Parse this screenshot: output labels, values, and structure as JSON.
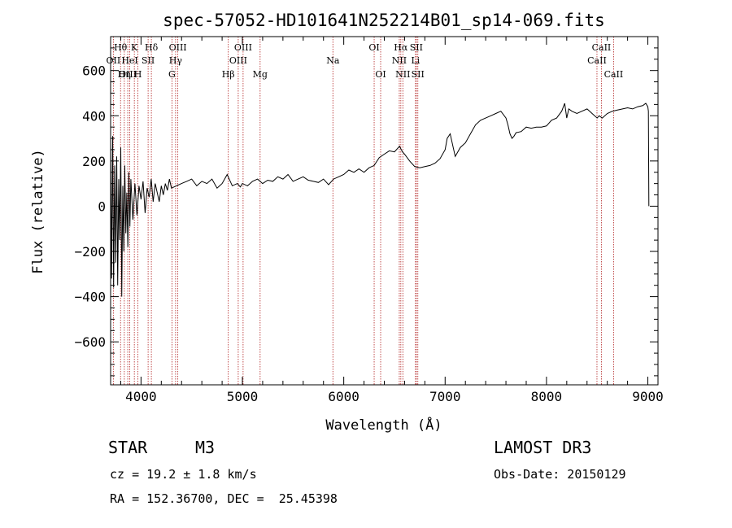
{
  "chart_data": {
    "type": "line",
    "title": "spec-57052-HD101641N252214B01_sp14-069.fits",
    "xlabel": "Wavelength (Å)",
    "ylabel": "Flux (relative)",
    "xlim": [
      3700,
      9100
    ],
    "ylim": [
      -790,
      750
    ],
    "xticks": [
      4000,
      5000,
      6000,
      7000,
      8000,
      9000
    ],
    "yticks": [
      -600,
      -400,
      -200,
      0,
      200,
      400,
      600
    ],
    "series": [
      {
        "name": "spectrum",
        "x": [
          3700,
          3710,
          3720,
          3730,
          3740,
          3750,
          3760,
          3770,
          3780,
          3790,
          3800,
          3810,
          3820,
          3830,
          3840,
          3850,
          3860,
          3870,
          3880,
          3890,
          3900,
          3920,
          3940,
          3960,
          3980,
          4000,
          4020,
          4040,
          4060,
          4080,
          4100,
          4120,
          4140,
          4160,
          4180,
          4200,
          4220,
          4240,
          4260,
          4280,
          4300,
          4350,
          4400,
          4450,
          4500,
          4550,
          4600,
          4650,
          4700,
          4750,
          4800,
          4850,
          4900,
          4950,
          4980,
          5000,
          5050,
          5100,
          5150,
          5200,
          5250,
          5300,
          5350,
          5400,
          5450,
          5500,
          5550,
          5600,
          5650,
          5700,
          5750,
          5800,
          5850,
          5900,
          5950,
          6000,
          6050,
          6100,
          6150,
          6200,
          6250,
          6300,
          6350,
          6400,
          6450,
          6500,
          6550,
          6580,
          6600,
          6650,
          6700,
          6750,
          6800,
          6850,
          6900,
          6950,
          7000,
          7020,
          7050,
          7080,
          7100,
          7150,
          7200,
          7250,
          7300,
          7350,
          7400,
          7450,
          7500,
          7550,
          7600,
          7620,
          7640,
          7660,
          7680,
          7700,
          7750,
          7800,
          7850,
          7900,
          7950,
          8000,
          8050,
          8100,
          8150,
          8180,
          8200,
          8220,
          8250,
          8300,
          8350,
          8400,
          8450,
          8500,
          8520,
          8550,
          8600,
          8650,
          8700,
          8750,
          8800,
          8850,
          8900,
          8950,
          8980,
          9000,
          9005,
          9010
        ],
        "y": [
          280,
          -320,
          310,
          -360,
          180,
          -250,
          220,
          -350,
          120,
          -150,
          260,
          -400,
          90,
          -200,
          180,
          -120,
          60,
          -180,
          150,
          -90,
          120,
          -60,
          100,
          -40,
          90,
          30,
          110,
          -30,
          80,
          40,
          120,
          20,
          100,
          60,
          20,
          90,
          50,
          100,
          70,
          120,
          80,
          90,
          100,
          110,
          120,
          90,
          110,
          100,
          120,
          80,
          100,
          140,
          90,
          100,
          85,
          100,
          90,
          110,
          120,
          100,
          115,
          110,
          130,
          120,
          140,
          110,
          120,
          130,
          115,
          110,
          105,
          120,
          95,
          120,
          130,
          140,
          160,
          150,
          165,
          150,
          170,
          180,
          215,
          230,
          245,
          240,
          265,
          240,
          230,
          200,
          175,
          170,
          175,
          180,
          190,
          210,
          250,
          300,
          320,
          260,
          220,
          260,
          280,
          320,
          360,
          380,
          390,
          400,
          410,
          420,
          390,
          360,
          320,
          300,
          310,
          325,
          330,
          350,
          345,
          350,
          350,
          355,
          380,
          390,
          420,
          455,
          390,
          430,
          420,
          410,
          420,
          430,
          410,
          390,
          400,
          390,
          410,
          420,
          425,
          430,
          435,
          430,
          440,
          445,
          455,
          440,
          420,
          0
        ]
      }
    ],
    "spectral_lines": [
      {
        "name": "Hθ",
        "wavelength": 3798,
        "row": 1
      },
      {
        "name": "OII",
        "wavelength": 3727,
        "row": 2
      },
      {
        "name": "OIII",
        "wavelength": 3869,
        "row": 3
      },
      {
        "name": "HeI",
        "wavelength": 3889,
        "row": 2
      },
      {
        "name": "Hη",
        "wavelength": 3835,
        "row": 3
      },
      {
        "name": "K",
        "wavelength": 3934,
        "row": 1
      },
      {
        "name": "H",
        "wavelength": 3969,
        "row": 3
      },
      {
        "name": "SII",
        "wavelength": 4070,
        "row": 2
      },
      {
        "name": "Hδ",
        "wavelength": 4102,
        "row": 1
      },
      {
        "name": "OIII",
        "wavelength": 4363,
        "row": 1
      },
      {
        "name": "Hγ",
        "wavelength": 4341,
        "row": 2
      },
      {
        "name": "G",
        "wavelength": 4305,
        "row": 3
      },
      {
        "name": "Hβ",
        "wavelength": 4861,
        "row": 3
      },
      {
        "name": "OIII",
        "wavelength": 5007,
        "row": 1
      },
      {
        "name": "OIII",
        "wavelength": 4959,
        "row": 2
      },
      {
        "name": "Mg",
        "wavelength": 5175,
        "row": 3
      },
      {
        "name": "Na",
        "wavelength": 5893,
        "row": 2
      },
      {
        "name": "OI",
        "wavelength": 6300,
        "row": 1
      },
      {
        "name": "OI",
        "wavelength": 6364,
        "row": 3
      },
      {
        "name": "Hα",
        "wavelength": 6563,
        "row": 1
      },
      {
        "name": "NII",
        "wavelength": 6548,
        "row": 2
      },
      {
        "name": "NII",
        "wavelength": 6583,
        "row": 3
      },
      {
        "name": "SII",
        "wavelength": 6716,
        "row": 1
      },
      {
        "name": "Li",
        "wavelength": 6708,
        "row": 2
      },
      {
        "name": "SII",
        "wavelength": 6731,
        "row": 3
      },
      {
        "name": "CaII",
        "wavelength": 8542,
        "row": 1
      },
      {
        "name": "CaII",
        "wavelength": 8498,
        "row": 2
      },
      {
        "name": "CaII",
        "wavelength": 8662,
        "row": 3
      }
    ]
  },
  "info": {
    "class": "STAR",
    "subclass": "M3",
    "survey": "LAMOST DR3",
    "cz": "cz = 19.2 ± 1.8 km/s",
    "obs_date": "Obs-Date: 20150129",
    "coords": "RA = 152.36700, DEC =  25.45398"
  },
  "colors": {
    "line_marker": "#b22222",
    "spectrum": "#000000",
    "axes": "#000000"
  }
}
